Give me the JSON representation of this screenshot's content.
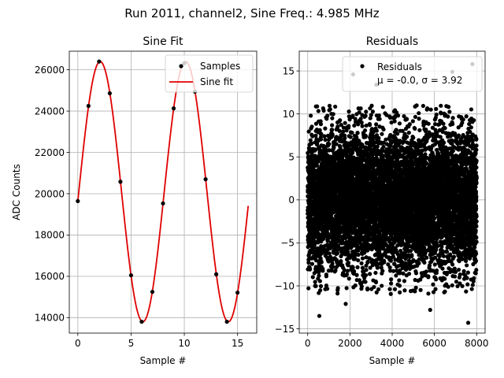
{
  "suptitle": "Run 2011, channel2, Sine Freq.: 4.985 MHz",
  "colors": {
    "fit": "#e00000",
    "points": "#000000",
    "grid": "#b0b0b0"
  },
  "chart_data": [
    {
      "type": "line",
      "title": "Sine Fit",
      "xlabel": "Sample #",
      "ylabel": "ADC Counts",
      "xlim": [
        -0.8,
        16.8
      ],
      "ylim": [
        13250,
        26900
      ],
      "xticks": [
        0,
        5,
        10,
        15
      ],
      "xtick_labels": [
        "0",
        "5",
        "10",
        "15"
      ],
      "yticks": [
        14000,
        16000,
        18000,
        20000,
        22000,
        24000,
        26000
      ],
      "ytick_labels": [
        "14000",
        "16000",
        "18000",
        "20000",
        "22000",
        "24000",
        "26000"
      ],
      "grid": true,
      "legend": {
        "placement": "top-right",
        "entries": [
          "Samples",
          "Sine fit"
        ]
      },
      "series": [
        {
          "name": "Samples",
          "kind": "scatter",
          "x": [
            0,
            1,
            2,
            3,
            4,
            5,
            6,
            7,
            8,
            9,
            10,
            11,
            12,
            13,
            14,
            15
          ],
          "y": [
            19640,
            24250,
            26400,
            24860,
            20580,
            16050,
            13800,
            15250,
            19530,
            24130,
            26320,
            24940,
            20700,
            16100,
            13800,
            15210
          ]
        },
        {
          "name": "Sine fit",
          "kind": "line",
          "model": {
            "offset": 20100,
            "amplitude": 6300,
            "period": 8.024,
            "phase": -0.072,
            "x_start": 0,
            "x_end": 16
          }
        }
      ]
    },
    {
      "type": "scatter",
      "title": "Residuals",
      "xlabel": "Sample #",
      "ylabel": "",
      "xlim": [
        -400,
        8400
      ],
      "ylim": [
        -15.5,
        17.3
      ],
      "xticks": [
        0,
        2000,
        4000,
        6000,
        8000
      ],
      "xtick_labels": [
        "0",
        "2000",
        "4000",
        "6000",
        "8000"
      ],
      "yticks": [
        -15,
        -10,
        -5,
        0,
        5,
        10,
        15
      ],
      "ytick_labels": [
        "−15",
        "−10",
        "−5",
        "0",
        "5",
        "10",
        "15"
      ],
      "grid": true,
      "legend": {
        "placement": "top-right",
        "entries": [
          "Residuals",
          "μ = -0.0, σ = 3.92"
        ]
      },
      "series": [
        {
          "name": "Residuals",
          "n_points": 8000,
          "mean": -0.0,
          "std": 3.92,
          "outliers": [
            {
              "x": 2150,
              "y": 14.6
            },
            {
              "x": 7800,
              "y": 15.8
            },
            {
              "x": 6850,
              "y": 14.9
            },
            {
              "x": 3250,
              "y": 13.4
            },
            {
              "x": 7600,
              "y": -14.3
            },
            {
              "x": 550,
              "y": -13.5
            },
            {
              "x": 1800,
              "y": -12.1
            },
            {
              "x": 5800,
              "y": -12.8
            }
          ]
        }
      ]
    }
  ]
}
